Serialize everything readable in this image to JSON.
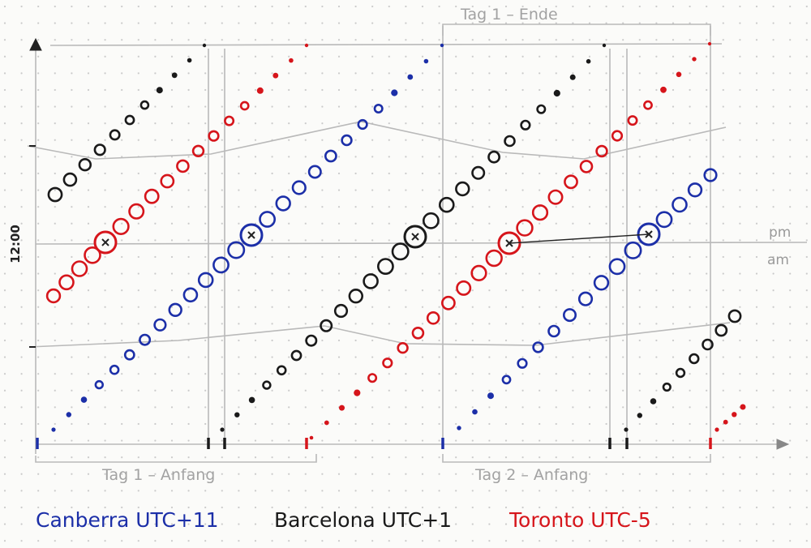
{
  "labels": {
    "noon": "12:00",
    "pm": "pm",
    "am": "am",
    "day1_start": "Tag 1 – Anfang",
    "day1_end": "Tag 1 – Ende",
    "day2_start": "Tag 2 – Anfang"
  },
  "legend": [
    {
      "label": "Canberra UTC+11",
      "color": "#1c2fa8"
    },
    {
      "label": "Barcelona UTC+1",
      "color": "#1a1a1a"
    },
    {
      "label": "Toronto UTC-5",
      "color": "#d6151b"
    }
  ],
  "colors": {
    "paper": "#fbfbf9",
    "dotgrid": "#c9c9c9",
    "pencil": "#b9b9b9",
    "canberra": "#1c2fa8",
    "barcelona": "#1a1a1a",
    "toronto": "#d6151b"
  }
}
